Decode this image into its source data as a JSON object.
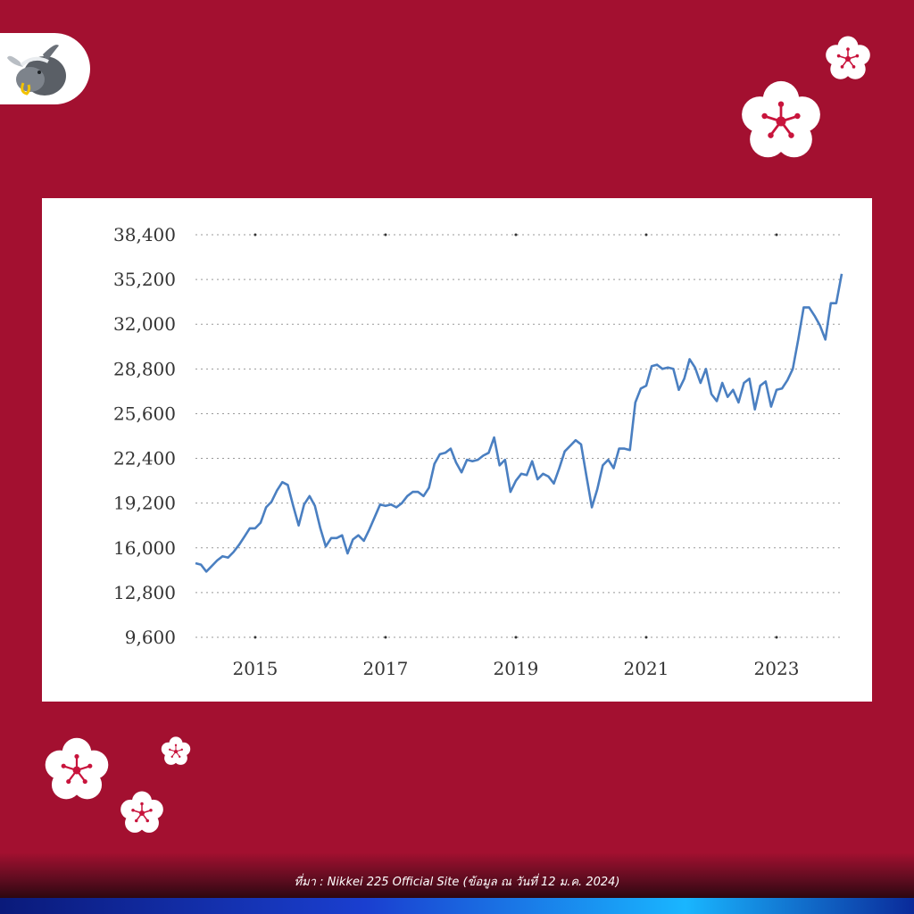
{
  "brand": {
    "logo_icon": "bull-mascot-icon"
  },
  "decorations": {
    "flower_icon": "plum-blossom-icon",
    "flower_color": "#ffffff",
    "flower_center_color": "#c8143c"
  },
  "colors": {
    "background": "#a31030",
    "line": "#4a7fc1",
    "grid": "#999999"
  },
  "chart_data": {
    "type": "line",
    "title": "",
    "xlabel": "",
    "ylabel": "",
    "x_ticks": [
      "2015",
      "2017",
      "2019",
      "2021",
      "2023"
    ],
    "y_ticks": [
      "9,600",
      "12,800",
      "16,000",
      "19,200",
      "22,400",
      "25,600",
      "28,800",
      "32,000",
      "35,200",
      "38,400"
    ],
    "ylim": [
      9600,
      38400
    ],
    "xlim": [
      "2014-02",
      "2024-01"
    ],
    "grid": true,
    "legend": "none",
    "series": [
      {
        "x": [
          "2014-02",
          "2014-03",
          "2014-04",
          "2014-05",
          "2014-06",
          "2014-07",
          "2014-08",
          "2014-09",
          "2014-10",
          "2014-11",
          "2014-12",
          "2015-01",
          "2015-02",
          "2015-03",
          "2015-04",
          "2015-05",
          "2015-06",
          "2015-07",
          "2015-08",
          "2015-09",
          "2015-10",
          "2015-11",
          "2015-12",
          "2016-01",
          "2016-02",
          "2016-03",
          "2016-04",
          "2016-05",
          "2016-06",
          "2016-07",
          "2016-08",
          "2016-09",
          "2016-10",
          "2016-11",
          "2016-12",
          "2017-01",
          "2017-02",
          "2017-03",
          "2017-04",
          "2017-05",
          "2017-06",
          "2017-07",
          "2017-08",
          "2017-09",
          "2017-10",
          "2017-11",
          "2017-12",
          "2018-01",
          "2018-02",
          "2018-03",
          "2018-04",
          "2018-05",
          "2018-06",
          "2018-07",
          "2018-08",
          "2018-09",
          "2018-10",
          "2018-11",
          "2018-12",
          "2019-01",
          "2019-02",
          "2019-03",
          "2019-04",
          "2019-05",
          "2019-06",
          "2019-07",
          "2019-08",
          "2019-09",
          "2019-10",
          "2019-11",
          "2019-12",
          "2020-01",
          "2020-02",
          "2020-03",
          "2020-04",
          "2020-05",
          "2020-06",
          "2020-07",
          "2020-08",
          "2020-09",
          "2020-10",
          "2020-11",
          "2020-12",
          "2021-01",
          "2021-02",
          "2021-03",
          "2021-04",
          "2021-05",
          "2021-06",
          "2021-07",
          "2021-08",
          "2021-09",
          "2021-10",
          "2021-11",
          "2021-12",
          "2022-01",
          "2022-02",
          "2022-03",
          "2022-04",
          "2022-05",
          "2022-06",
          "2022-07",
          "2022-08",
          "2022-09",
          "2022-10",
          "2022-11",
          "2022-12",
          "2023-01",
          "2023-02",
          "2023-03",
          "2023-04",
          "2023-05",
          "2023-06",
          "2023-07",
          "2023-08",
          "2023-09",
          "2023-10",
          "2023-11",
          "2023-12",
          "2024-01"
        ],
        "values": [
          14900,
          14800,
          14300,
          14700,
          15100,
          15400,
          15300,
          15700,
          16200,
          16800,
          17400,
          17400,
          17800,
          18900,
          19300,
          20100,
          20700,
          20500,
          19000,
          17600,
          19100,
          19700,
          19000,
          17400,
          16100,
          16700,
          16700,
          16900,
          15600,
          16600,
          16900,
          16500,
          17300,
          18200,
          19100,
          19000,
          19100,
          18900,
          19200,
          19700,
          20000,
          20000,
          19700,
          20300,
          22000,
          22700,
          22800,
          23100,
          22100,
          21400,
          22300,
          22200,
          22300,
          22600,
          22800,
          23900,
          21900,
          22300,
          20000,
          20800,
          21300,
          21200,
          22200,
          20900,
          21300,
          21100,
          20600,
          21700,
          22900,
          23300,
          23700,
          23400,
          21100,
          18900,
          20200,
          21900,
          22300,
          21700,
          23100,
          23100,
          23000,
          26400,
          27400,
          27600,
          29000,
          29100,
          28800,
          28900,
          28800,
          27300,
          28100,
          29500,
          28900,
          27800,
          28800,
          27000,
          26500,
          27800,
          26800,
          27300,
          26400,
          27800,
          28100,
          25900,
          27600,
          27900,
          26100,
          27300,
          27400,
          28000,
          28800,
          30900,
          33200,
          33200,
          32600,
          31900,
          30900,
          33500,
          33500,
          35600
        ]
      }
    ]
  },
  "footer": {
    "source": "ที่มา : Nikkei 225 Official Site (ข้อมูล ณ วันที่ 12 ม.ค. 2024)"
  }
}
